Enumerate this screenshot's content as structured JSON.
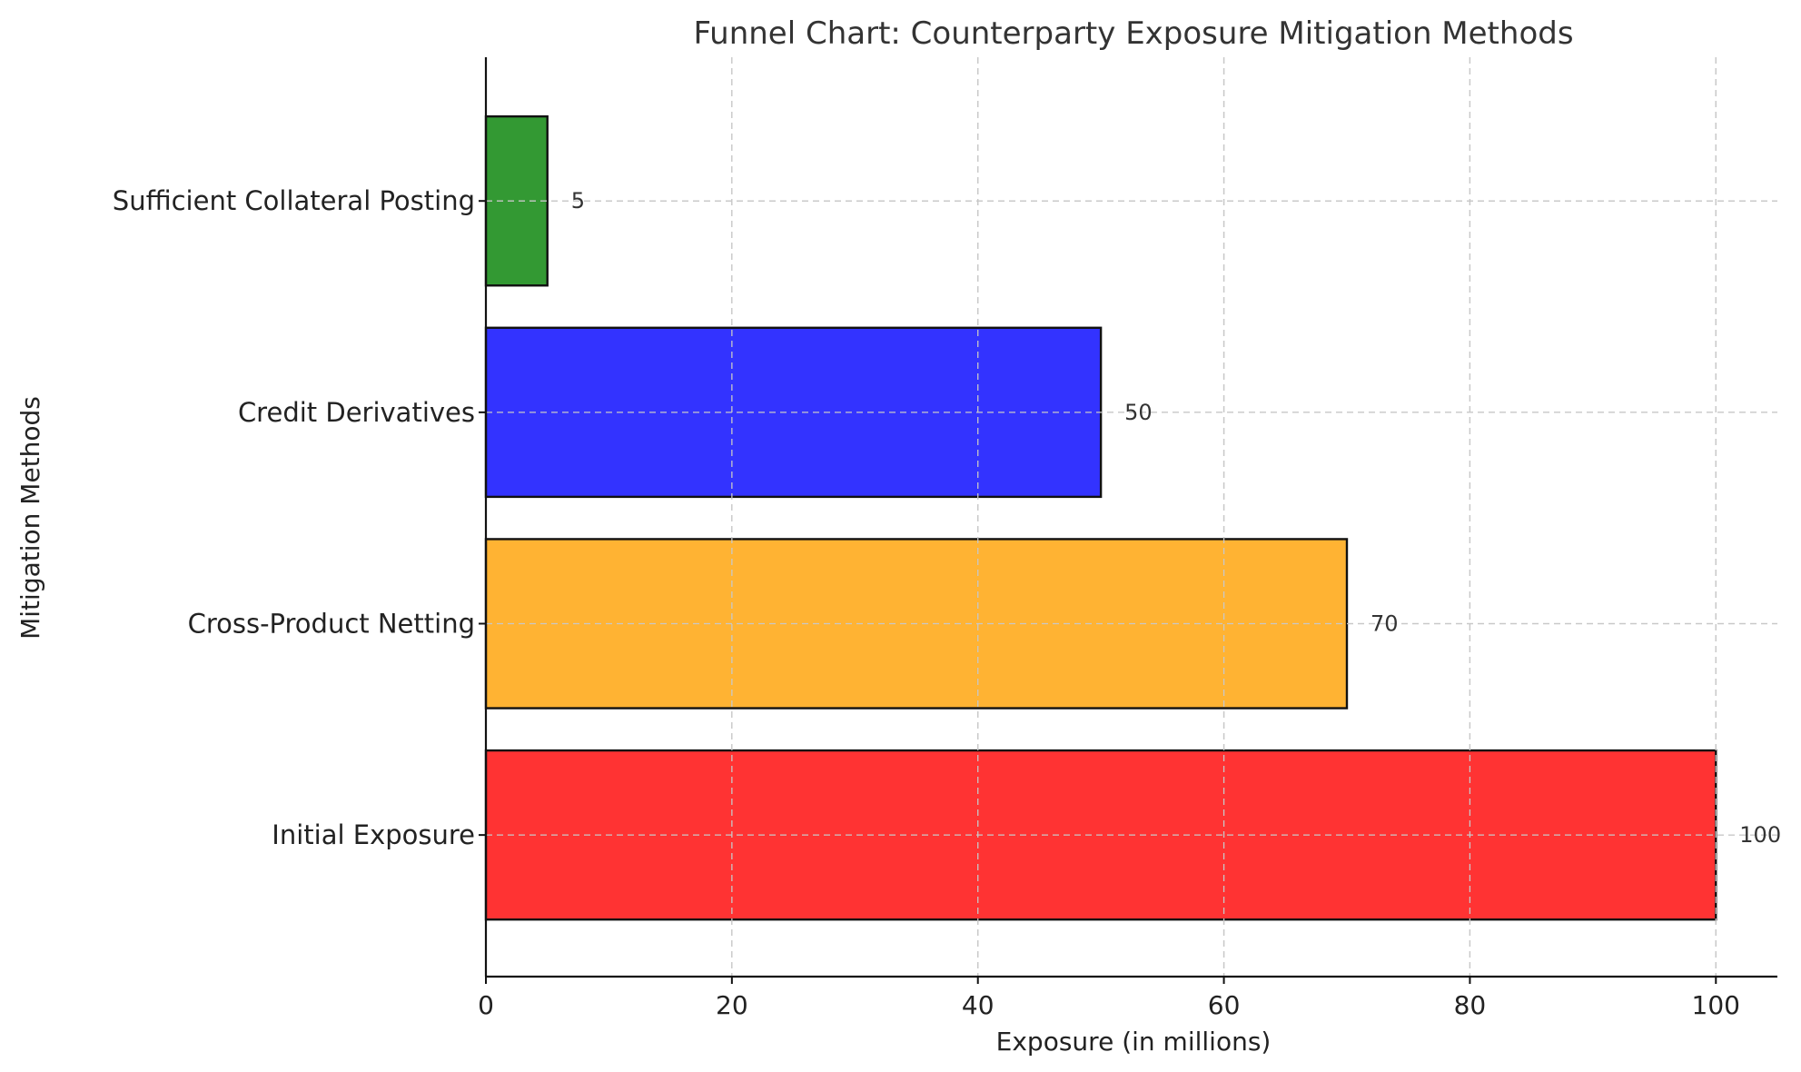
{
  "chart_data": {
    "type": "bar",
    "orientation": "horizontal",
    "title": "Funnel Chart: Counterparty Exposure Mitigation Methods",
    "xlabel": "Exposure (in millions)",
    "ylabel": "Mitigation Methods",
    "categories": [
      "Initial Exposure",
      "Cross-Product Netting",
      "Credit Derivatives",
      "Sufficient Collateral Posting"
    ],
    "values": [
      100,
      70,
      50,
      5
    ],
    "colors": [
      "#ff3333",
      "#ffb333",
      "#3333ff",
      "#339933"
    ],
    "xlim": [
      0,
      105
    ],
    "xticks": [
      0,
      20,
      40,
      60,
      80,
      100
    ],
    "grid": true,
    "legend": "none"
  }
}
